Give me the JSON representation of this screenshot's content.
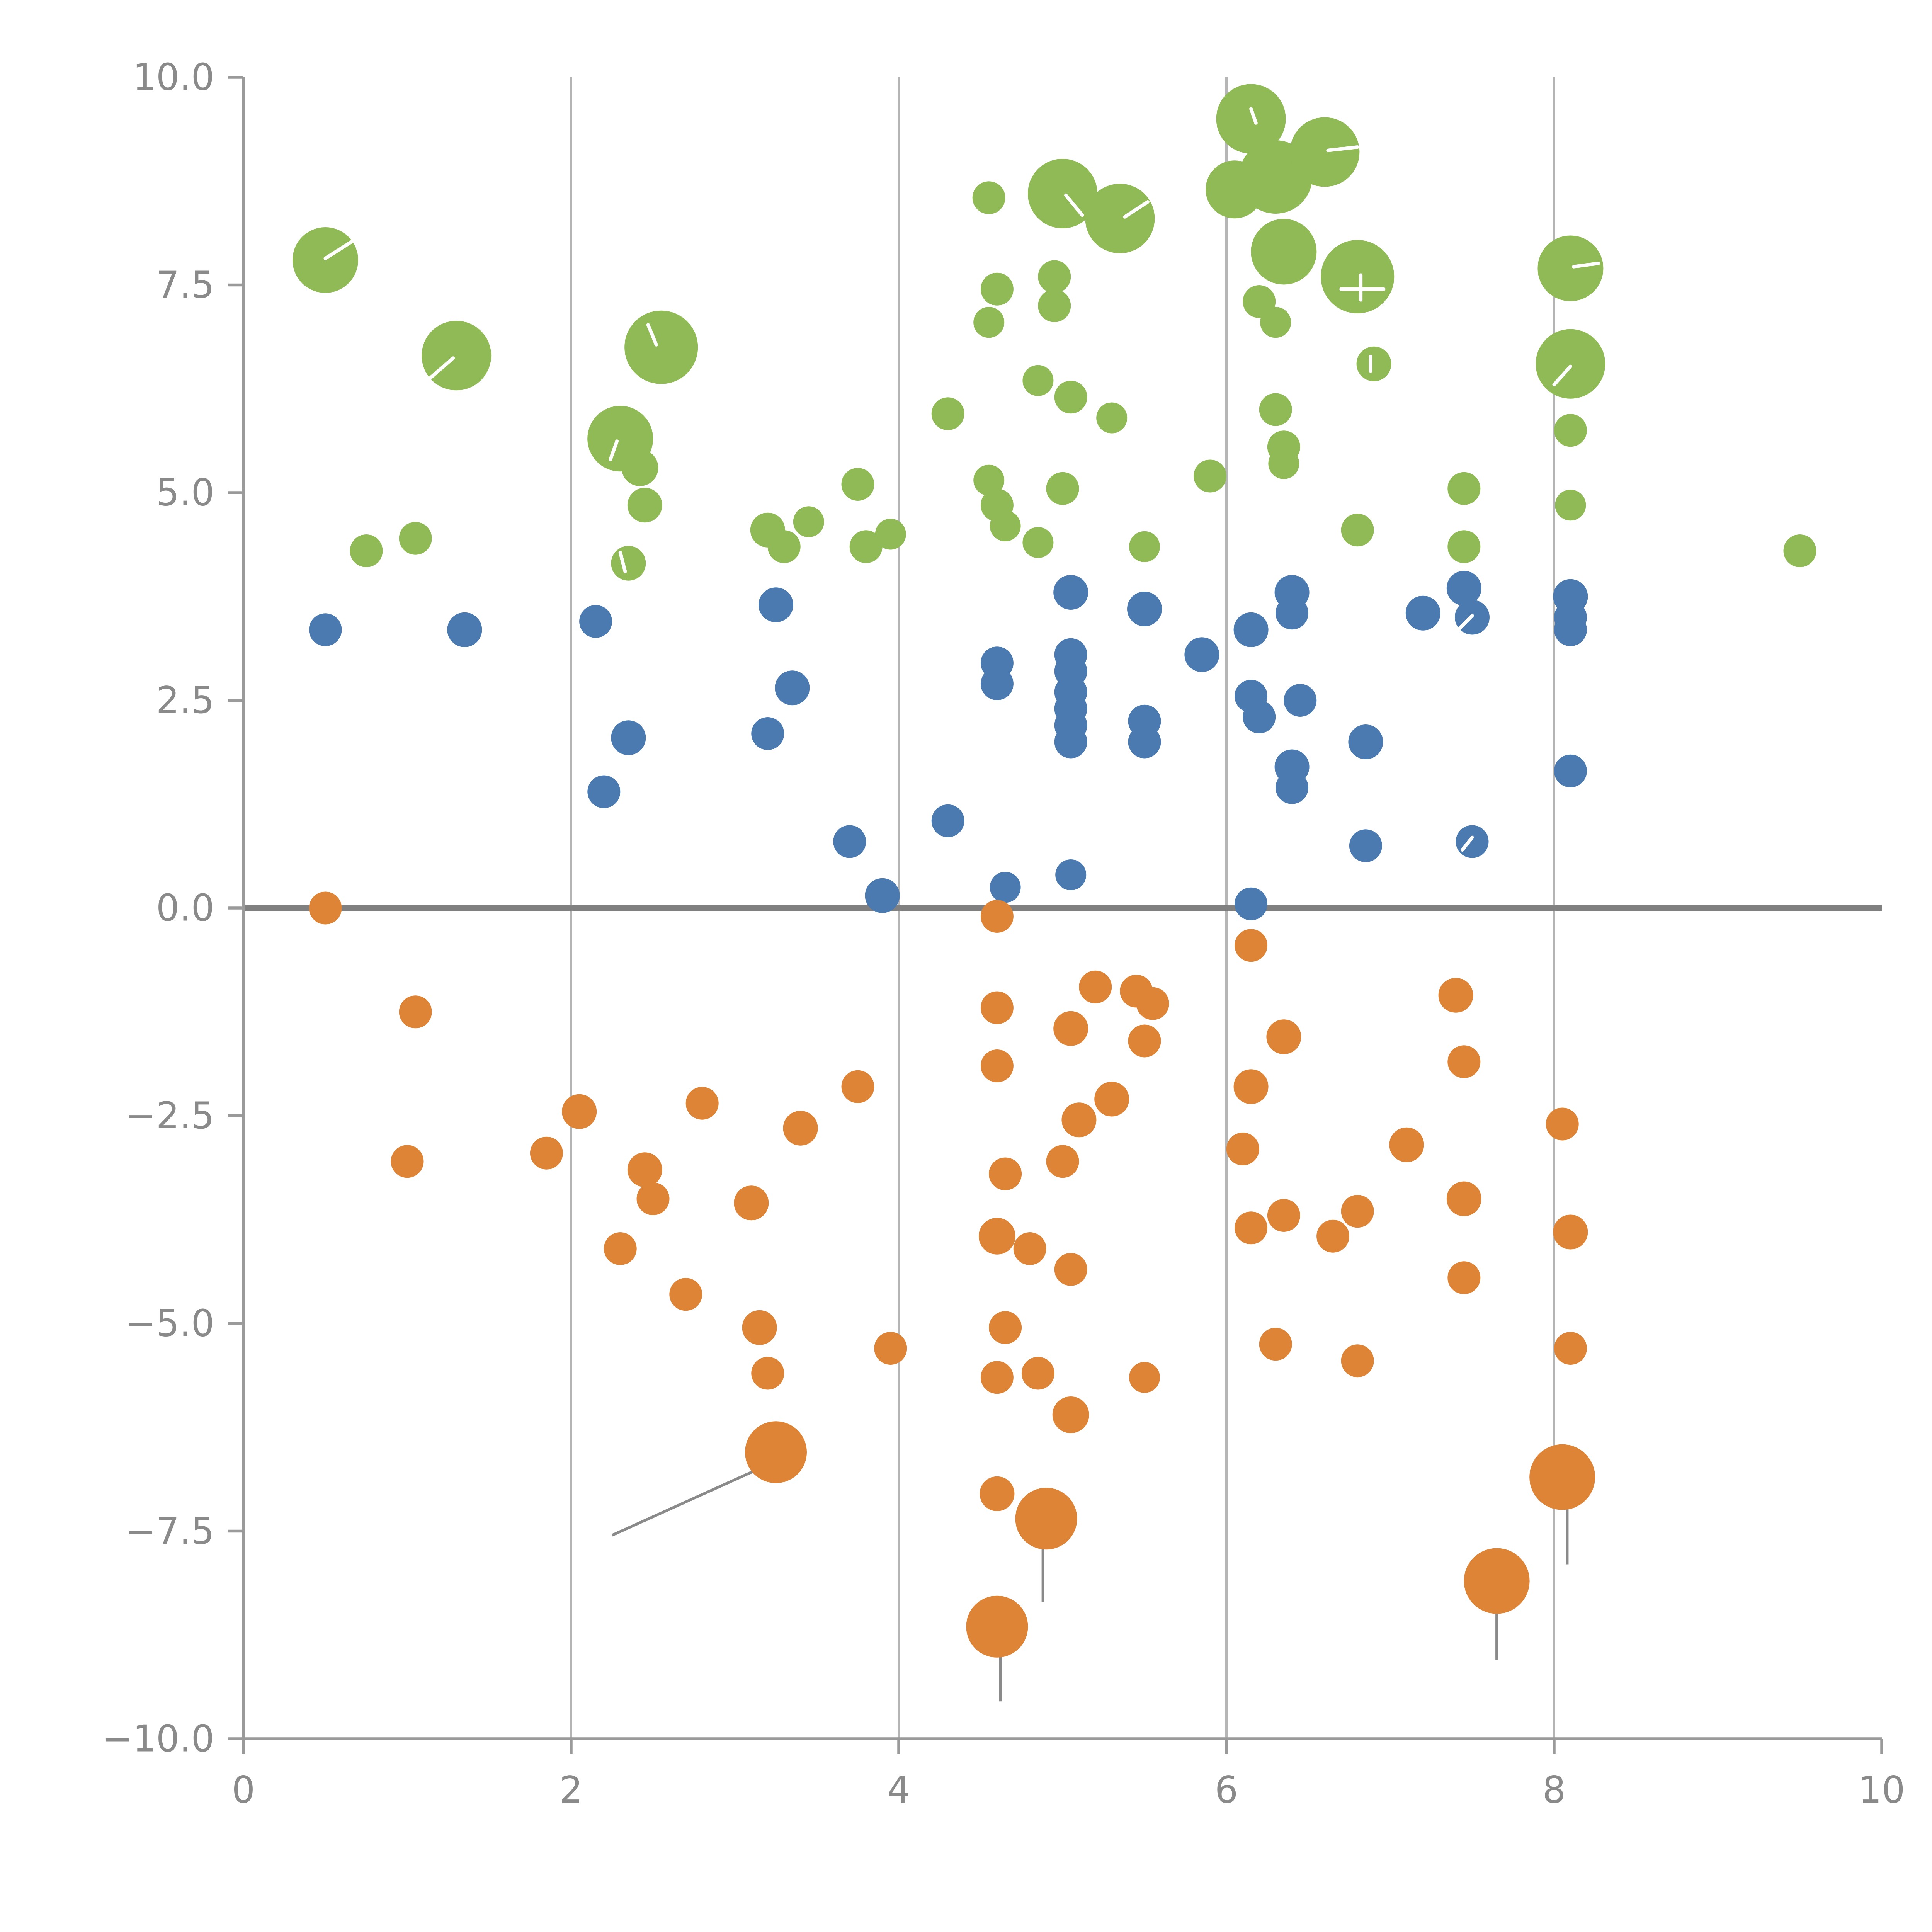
{
  "chart_data": {
    "type": "scatter",
    "title": "",
    "xlabel": "",
    "ylabel": "",
    "xlim": [
      0,
      10
    ],
    "ylim": [
      -10,
      10
    ],
    "grid": {
      "vertical_lines_x": [
        2,
        4,
        6,
        8
      ],
      "zero_line_y": 0
    },
    "legend": "none",
    "x_ticks": [
      {
        "value": 0,
        "label": "0"
      },
      {
        "value": 2,
        "label": "2"
      },
      {
        "value": 4,
        "label": "4"
      },
      {
        "value": 6,
        "label": "6"
      },
      {
        "value": 8,
        "label": "8"
      },
      {
        "value": 10,
        "label": "10"
      }
    ],
    "y_ticks": [
      {
        "value": 10,
        "label": "10.0"
      },
      {
        "value": 7.5,
        "label": "7.5"
      },
      {
        "value": 5,
        "label": "5.0"
      },
      {
        "value": 2.5,
        "label": "2.5"
      },
      {
        "value": 0,
        "label": "0.0"
      },
      {
        "value": -2.5,
        "label": "−2.5"
      },
      {
        "value": -5,
        "label": "−5.0"
      },
      {
        "value": -7.5,
        "label": "−7.5"
      },
      {
        "value": -10,
        "label": "−10.0"
      }
    ],
    "colors": {
      "grid": "#b5b5b5",
      "zero_line": "#808080",
      "axis": "#9a9a9a",
      "tick_label": "#8a8a8a",
      "annotation": "#8a8a8a",
      "white_mark": "#ffffff"
    },
    "series": [
      {
        "name": "green",
        "color": "#8fba55",
        "points": [
          [
            0.5,
            7.8,
            17
          ],
          [
            1.3,
            6.65,
            18
          ],
          [
            0.75,
            4.3,
            8.5
          ],
          [
            1.05,
            4.45,
            8.5
          ],
          [
            2.55,
            6.75,
            19
          ],
          [
            2.3,
            5.65,
            17
          ],
          [
            2.42,
            5.3,
            9.5
          ],
          [
            2.45,
            4.85,
            9
          ],
          [
            2.35,
            4.15,
            9
          ],
          [
            3.2,
            4.55,
            9
          ],
          [
            3.3,
            4.35,
            8.5
          ],
          [
            3.45,
            4.65,
            8
          ],
          [
            3.75,
            5.1,
            8.5
          ],
          [
            3.8,
            4.35,
            8.5
          ],
          [
            3.95,
            4.5,
            8
          ],
          [
            4.3,
            5.95,
            8.5
          ],
          [
            4.55,
            8.55,
            8.5
          ],
          [
            4.6,
            7.45,
            8.5
          ],
          [
            4.55,
            7.05,
            8
          ],
          [
            4.55,
            5.15,
            8
          ],
          [
            4.6,
            4.85,
            8.5
          ],
          [
            4.65,
            4.6,
            8
          ],
          [
            4.85,
            4.4,
            8
          ],
          [
            5.0,
            8.6,
            18
          ],
          [
            5.35,
            8.3,
            18
          ],
          [
            4.95,
            7.6,
            8.5
          ],
          [
            4.95,
            7.25,
            8.5
          ],
          [
            4.85,
            6.35,
            8
          ],
          [
            5.05,
            6.15,
            8.5
          ],
          [
            5.3,
            5.9,
            8
          ],
          [
            5.0,
            5.05,
            8.5
          ],
          [
            5.5,
            4.35,
            8
          ],
          [
            5.9,
            5.2,
            8.5
          ],
          [
            6.15,
            9.5,
            18
          ],
          [
            6.05,
            8.65,
            15
          ],
          [
            6.3,
            8.8,
            19
          ],
          [
            6.6,
            9.1,
            18
          ],
          [
            6.35,
            7.9,
            17
          ],
          [
            6.8,
            7.6,
            19
          ],
          [
            6.2,
            7.3,
            8.5
          ],
          [
            6.3,
            7.05,
            8
          ],
          [
            6.9,
            6.55,
            9
          ],
          [
            6.3,
            6.0,
            8.5
          ],
          [
            6.35,
            5.55,
            8.5
          ],
          [
            6.35,
            5.35,
            8
          ],
          [
            6.8,
            4.55,
            8.5
          ],
          [
            7.45,
            5.05,
            8.5
          ],
          [
            7.45,
            4.35,
            8.5
          ],
          [
            8.1,
            7.7,
            17
          ],
          [
            8.1,
            6.55,
            18
          ],
          [
            8.1,
            5.75,
            8.5
          ],
          [
            8.1,
            4.85,
            8
          ],
          [
            9.5,
            4.3,
            8.5
          ]
        ]
      },
      {
        "name": "blue",
        "color": "#4a7ab0",
        "points": [
          [
            0.5,
            3.35,
            8.5
          ],
          [
            1.35,
            3.35,
            9
          ],
          [
            2.15,
            3.45,
            8.5
          ],
          [
            2.2,
            1.4,
            8.5
          ],
          [
            2.35,
            2.05,
            9
          ],
          [
            3.25,
            3.65,
            9
          ],
          [
            3.2,
            2.1,
            8.5
          ],
          [
            3.35,
            2.65,
            9
          ],
          [
            3.7,
            0.8,
            8.5
          ],
          [
            3.9,
            0.15,
            9
          ],
          [
            4.3,
            1.05,
            8.5
          ],
          [
            4.6,
            2.95,
            8.5
          ],
          [
            4.6,
            2.7,
            8.5
          ],
          [
            4.65,
            0.25,
            8
          ],
          [
            5.05,
            3.8,
            9
          ],
          [
            5.05,
            3.05,
            8.5
          ],
          [
            5.05,
            2.85,
            8.5
          ],
          [
            5.05,
            2.6,
            8.5
          ],
          [
            5.05,
            2.4,
            8.5
          ],
          [
            5.05,
            2.2,
            8.5
          ],
          [
            5.05,
            2.0,
            8.5
          ],
          [
            5.05,
            0.4,
            8
          ],
          [
            5.5,
            3.6,
            9
          ],
          [
            5.5,
            2.25,
            8.5
          ],
          [
            5.5,
            2.0,
            8.5
          ],
          [
            5.85,
            3.05,
            9
          ],
          [
            6.15,
            3.35,
            9
          ],
          [
            6.4,
            3.8,
            9
          ],
          [
            6.4,
            3.55,
            8.5
          ],
          [
            6.15,
            2.55,
            8.5
          ],
          [
            6.2,
            2.3,
            8.5
          ],
          [
            6.45,
            2.5,
            8.5
          ],
          [
            6.4,
            1.7,
            9
          ],
          [
            6.4,
            1.45,
            8.5
          ],
          [
            6.15,
            0.05,
            8.5
          ],
          [
            6.85,
            2.0,
            9
          ],
          [
            6.85,
            0.75,
            8.5
          ],
          [
            7.2,
            3.55,
            9
          ],
          [
            7.45,
            3.85,
            9
          ],
          [
            7.5,
            3.5,
            9
          ],
          [
            7.5,
            0.8,
            8.5
          ],
          [
            8.1,
            3.75,
            9
          ],
          [
            8.1,
            3.5,
            8.5
          ],
          [
            8.1,
            3.35,
            8.5
          ],
          [
            8.1,
            1.65,
            8.5
          ]
        ]
      },
      {
        "name": "orange",
        "color": "#dd8437",
        "points": [
          [
            0.5,
            0.0,
            8.5
          ],
          [
            1.05,
            -1.25,
            8.5
          ],
          [
            1.0,
            -3.05,
            8.5
          ],
          [
            1.85,
            -2.95,
            8.5
          ],
          [
            2.05,
            -2.45,
            9
          ],
          [
            2.3,
            -4.1,
            8.5
          ],
          [
            2.45,
            -3.15,
            9
          ],
          [
            2.5,
            -3.5,
            8.5
          ],
          [
            2.7,
            -4.65,
            8.5
          ],
          [
            2.8,
            -2.35,
            8.5
          ],
          [
            3.1,
            -3.55,
            9
          ],
          [
            3.15,
            -5.05,
            9
          ],
          [
            3.2,
            -5.6,
            8.5
          ],
          [
            3.25,
            -6.55,
            16
          ],
          [
            3.4,
            -2.65,
            9
          ],
          [
            3.75,
            -2.15,
            8.5
          ],
          [
            3.95,
            -5.3,
            8.5
          ],
          [
            4.6,
            -0.1,
            8.5
          ],
          [
            4.6,
            -1.2,
            8.5
          ],
          [
            4.6,
            -1.9,
            8.5
          ],
          [
            4.65,
            -3.2,
            8.5
          ],
          [
            4.6,
            -3.95,
            9.5
          ],
          [
            4.8,
            -4.1,
            8.5
          ],
          [
            4.65,
            -5.05,
            8.5
          ],
          [
            4.6,
            -5.65,
            8.5
          ],
          [
            4.85,
            -5.6,
            8.5
          ],
          [
            4.6,
            -7.05,
            9
          ],
          [
            4.9,
            -7.35,
            16
          ],
          [
            4.6,
            -8.65,
            16
          ],
          [
            5.05,
            -1.45,
            9
          ],
          [
            5.1,
            -2.55,
            9
          ],
          [
            5.0,
            -3.05,
            8.5
          ],
          [
            5.05,
            -4.35,
            8.5
          ],
          [
            5.05,
            -6.1,
            9.5
          ],
          [
            5.2,
            -0.95,
            8.5
          ],
          [
            5.3,
            -2.3,
            9
          ],
          [
            5.45,
            -1.0,
            8.5
          ],
          [
            5.55,
            -1.15,
            8.5
          ],
          [
            5.5,
            -1.6,
            8.5
          ],
          [
            5.5,
            -5.65,
            8
          ],
          [
            6.15,
            -0.45,
            8.5
          ],
          [
            6.15,
            -2.15,
            9
          ],
          [
            6.1,
            -2.9,
            8.5
          ],
          [
            6.15,
            -3.85,
            8.5
          ],
          [
            6.35,
            -1.55,
            9
          ],
          [
            6.35,
            -3.7,
            8.5
          ],
          [
            6.3,
            -5.25,
            8.5
          ],
          [
            6.65,
            -3.95,
            8.5
          ],
          [
            6.8,
            -3.65,
            8.5
          ],
          [
            6.8,
            -5.45,
            8.5
          ],
          [
            7.1,
            -2.85,
            9
          ],
          [
            7.4,
            -1.05,
            9
          ],
          [
            7.45,
            -1.85,
            8.5
          ],
          [
            7.45,
            -3.5,
            9
          ],
          [
            7.45,
            -4.45,
            8.5
          ],
          [
            7.65,
            -8.1,
            17
          ],
          [
            8.05,
            -2.6,
            8.5
          ],
          [
            8.1,
            -3.9,
            9
          ],
          [
            8.1,
            -5.3,
            8.5
          ],
          [
            8.05,
            -6.85,
            17
          ]
        ]
      }
    ],
    "annotations": {
      "gray_lines": [
        [
          2.25,
          -7.55,
          3.18,
          -6.72
        ],
        [
          4.88,
          -7.7,
          4.88,
          -8.35
        ],
        [
          4.62,
          -8.92,
          4.62,
          -9.55
        ],
        [
          7.65,
          -8.42,
          7.65,
          -9.05
        ],
        [
          8.08,
          -7.12,
          8.08,
          -7.9
        ]
      ],
      "white_ticks": [
        [
          0.5,
          7.82,
          0.66,
          8.02
        ],
        [
          1.28,
          6.62,
          1.14,
          6.38
        ],
        [
          2.52,
          6.78,
          2.47,
          7.02
        ],
        [
          2.28,
          5.62,
          2.24,
          5.4
        ],
        [
          2.33,
          4.05,
          2.3,
          4.28
        ],
        [
          5.02,
          8.58,
          5.12,
          8.34
        ],
        [
          5.38,
          8.32,
          5.52,
          8.5
        ],
        [
          6.62,
          9.12,
          6.8,
          9.16
        ],
        [
          6.15,
          9.62,
          6.18,
          9.45
        ],
        [
          6.82,
          7.62,
          6.82,
          7.32
        ],
        [
          6.7,
          7.45,
          6.96,
          7.45
        ],
        [
          6.88,
          6.64,
          6.88,
          6.46
        ],
        [
          8.12,
          7.72,
          8.27,
          7.76
        ],
        [
          8.1,
          6.52,
          8.0,
          6.3
        ],
        [
          7.5,
          3.52,
          7.4,
          3.32
        ],
        [
          7.5,
          0.85,
          7.44,
          0.7
        ]
      ]
    }
  }
}
